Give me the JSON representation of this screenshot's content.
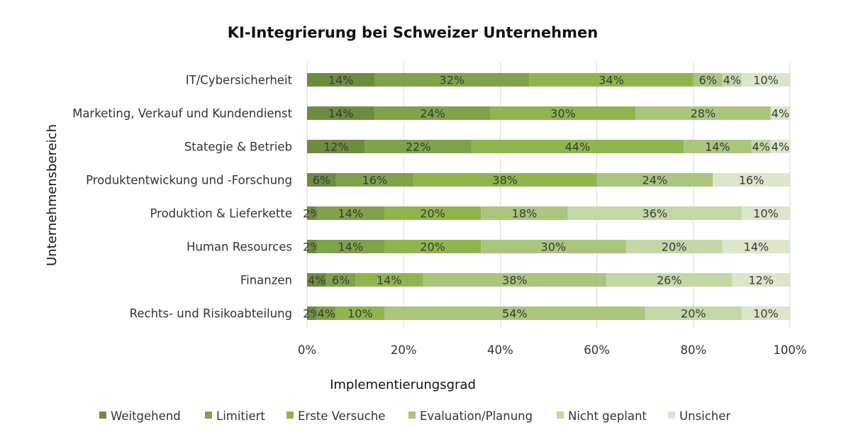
{
  "chart_data": {
    "type": "bar",
    "orientation": "horizontal",
    "stacked": "percent",
    "title": "KI-Integrierung bei Schweizer Unternehmen",
    "xlabel": "Implementierungsgrad",
    "ylabel": "Unternehmensbereich",
    "xlim": [
      0,
      100
    ],
    "x_ticks": [
      "0%",
      "20%",
      "40%",
      "60%",
      "80%",
      "100%"
    ],
    "grid": "vertical",
    "legend_position": "bottom",
    "categories": [
      "IT/Cybersicherheit",
      "Marketing, Verkauf und Kundendienst",
      "Stategie & Betrieb",
      "Produktentwickung und -Forschung",
      "Produktion & Lieferkette",
      "Human Resources",
      "Finanzen",
      "Rechts- und Risikoabteilung"
    ],
    "series": [
      {
        "name": "Weitgehend",
        "color": "#6e8c40",
        "values": [
          14,
          14,
          12,
          6,
          2,
          2,
          4,
          2
        ]
      },
      {
        "name": "Limitiert",
        "color": "#7fa24a",
        "values": [
          32,
          24,
          22,
          16,
          14,
          14,
          6,
          4
        ]
      },
      {
        "name": "Erste Versuche",
        "color": "#8fb54e",
        "values": [
          34,
          30,
          44,
          38,
          20,
          20,
          14,
          10
        ]
      },
      {
        "name": "Evaluation/Planung",
        "color": "#a9c57e",
        "values": [
          6,
          28,
          14,
          24,
          18,
          30,
          38,
          54
        ]
      },
      {
        "name": "Nicht geplant",
        "color": "#c4d7a6",
        "values": [
          4,
          0,
          4,
          0,
          36,
          20,
          26,
          20
        ]
      },
      {
        "name": "Unsicher",
        "color": "#dbe6cb",
        "values": [
          10,
          4,
          4,
          16,
          10,
          14,
          12,
          10
        ]
      }
    ]
  }
}
